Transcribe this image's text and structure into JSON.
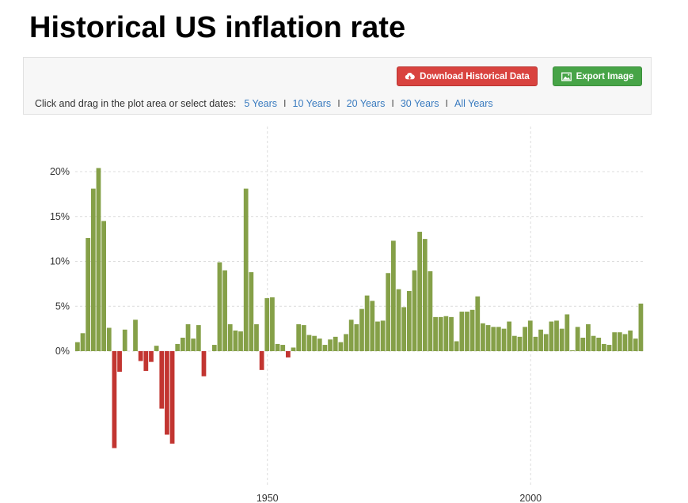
{
  "header": {
    "title": "Historical US inflation rate"
  },
  "toolbar": {
    "download_label": "Download Historical Data",
    "export_label": "Export Image",
    "range_prompt": "Click and drag in the plot area or select dates:",
    "ranges": [
      "5 Years",
      "10 Years",
      "20 Years",
      "30 Years",
      "All Years"
    ],
    "download_icon": "cloud-download-icon",
    "export_icon": "image-icon"
  },
  "colors": {
    "positive": "#85a048",
    "negative": "#c23531",
    "download": "#d9433f",
    "export": "#47a447"
  },
  "chart_data": {
    "type": "bar",
    "title": "",
    "xlabel": "",
    "ylabel": "",
    "x": [
      1914,
      1915,
      1916,
      1917,
      1918,
      1919,
      1920,
      1921,
      1922,
      1923,
      1924,
      1925,
      1926,
      1927,
      1928,
      1929,
      1930,
      1931,
      1932,
      1933,
      1934,
      1935,
      1936,
      1937,
      1938,
      1939,
      1940,
      1941,
      1942,
      1943,
      1944,
      1945,
      1946,
      1947,
      1948,
      1949,
      1950,
      1951,
      1952,
      1953,
      1954,
      1955,
      1956,
      1957,
      1958,
      1959,
      1960,
      1961,
      1962,
      1963,
      1964,
      1965,
      1966,
      1967,
      1968,
      1969,
      1970,
      1971,
      1972,
      1973,
      1974,
      1975,
      1976,
      1977,
      1978,
      1979,
      1980,
      1981,
      1982,
      1983,
      1984,
      1985,
      1986,
      1987,
      1988,
      1989,
      1990,
      1991,
      1992,
      1993,
      1994,
      1995,
      1996,
      1997,
      1998,
      1999,
      2000,
      2001,
      2002,
      2003,
      2004,
      2005,
      2006,
      2007,
      2008,
      2009,
      2010,
      2011,
      2012,
      2013,
      2014,
      2015,
      2016,
      2017,
      2018,
      2019,
      2020,
      2021
    ],
    "values": [
      1.0,
      2.0,
      12.6,
      18.1,
      20.4,
      14.5,
      2.6,
      -10.8,
      -2.3,
      2.4,
      0.0,
      3.5,
      -1.1,
      -2.2,
      -1.2,
      0.6,
      -6.4,
      -9.3,
      -10.3,
      0.8,
      1.5,
      3.0,
      1.4,
      2.9,
      -2.8,
      0.0,
      0.7,
      9.9,
      9.0,
      3.0,
      2.3,
      2.2,
      18.1,
      8.8,
      3.0,
      -2.1,
      5.9,
      6.0,
      0.8,
      0.7,
      -0.7,
      0.4,
      3.0,
      2.9,
      1.8,
      1.7,
      1.4,
      0.7,
      1.3,
      1.6,
      1.0,
      1.9,
      3.5,
      3.0,
      4.7,
      6.2,
      5.6,
      3.3,
      3.4,
      8.7,
      12.3,
      6.9,
      4.9,
      6.7,
      9.0,
      13.3,
      12.5,
      8.9,
      3.8,
      3.8,
      3.9,
      3.8,
      1.1,
      4.4,
      4.4,
      4.6,
      6.1,
      3.1,
      2.9,
      2.7,
      2.7,
      2.5,
      3.3,
      1.7,
      1.6,
      2.7,
      3.4,
      1.6,
      2.4,
      1.9,
      3.3,
      3.4,
      2.5,
      4.1,
      0.1,
      2.7,
      1.5,
      3.0,
      1.7,
      1.5,
      0.8,
      0.7,
      2.1,
      2.1,
      1.9,
      2.3,
      1.4,
      5.3
    ],
    "ylim": [
      -14,
      25
    ],
    "y_ticks": [
      0,
      5,
      10,
      15,
      20
    ],
    "y_tick_labels": [
      "0%",
      "5%",
      "10%",
      "15%",
      "20%"
    ],
    "x_ticks": [
      1950,
      2000
    ],
    "x_tick_labels": [
      "1950",
      "2000"
    ],
    "grid": true,
    "legend": "none"
  }
}
